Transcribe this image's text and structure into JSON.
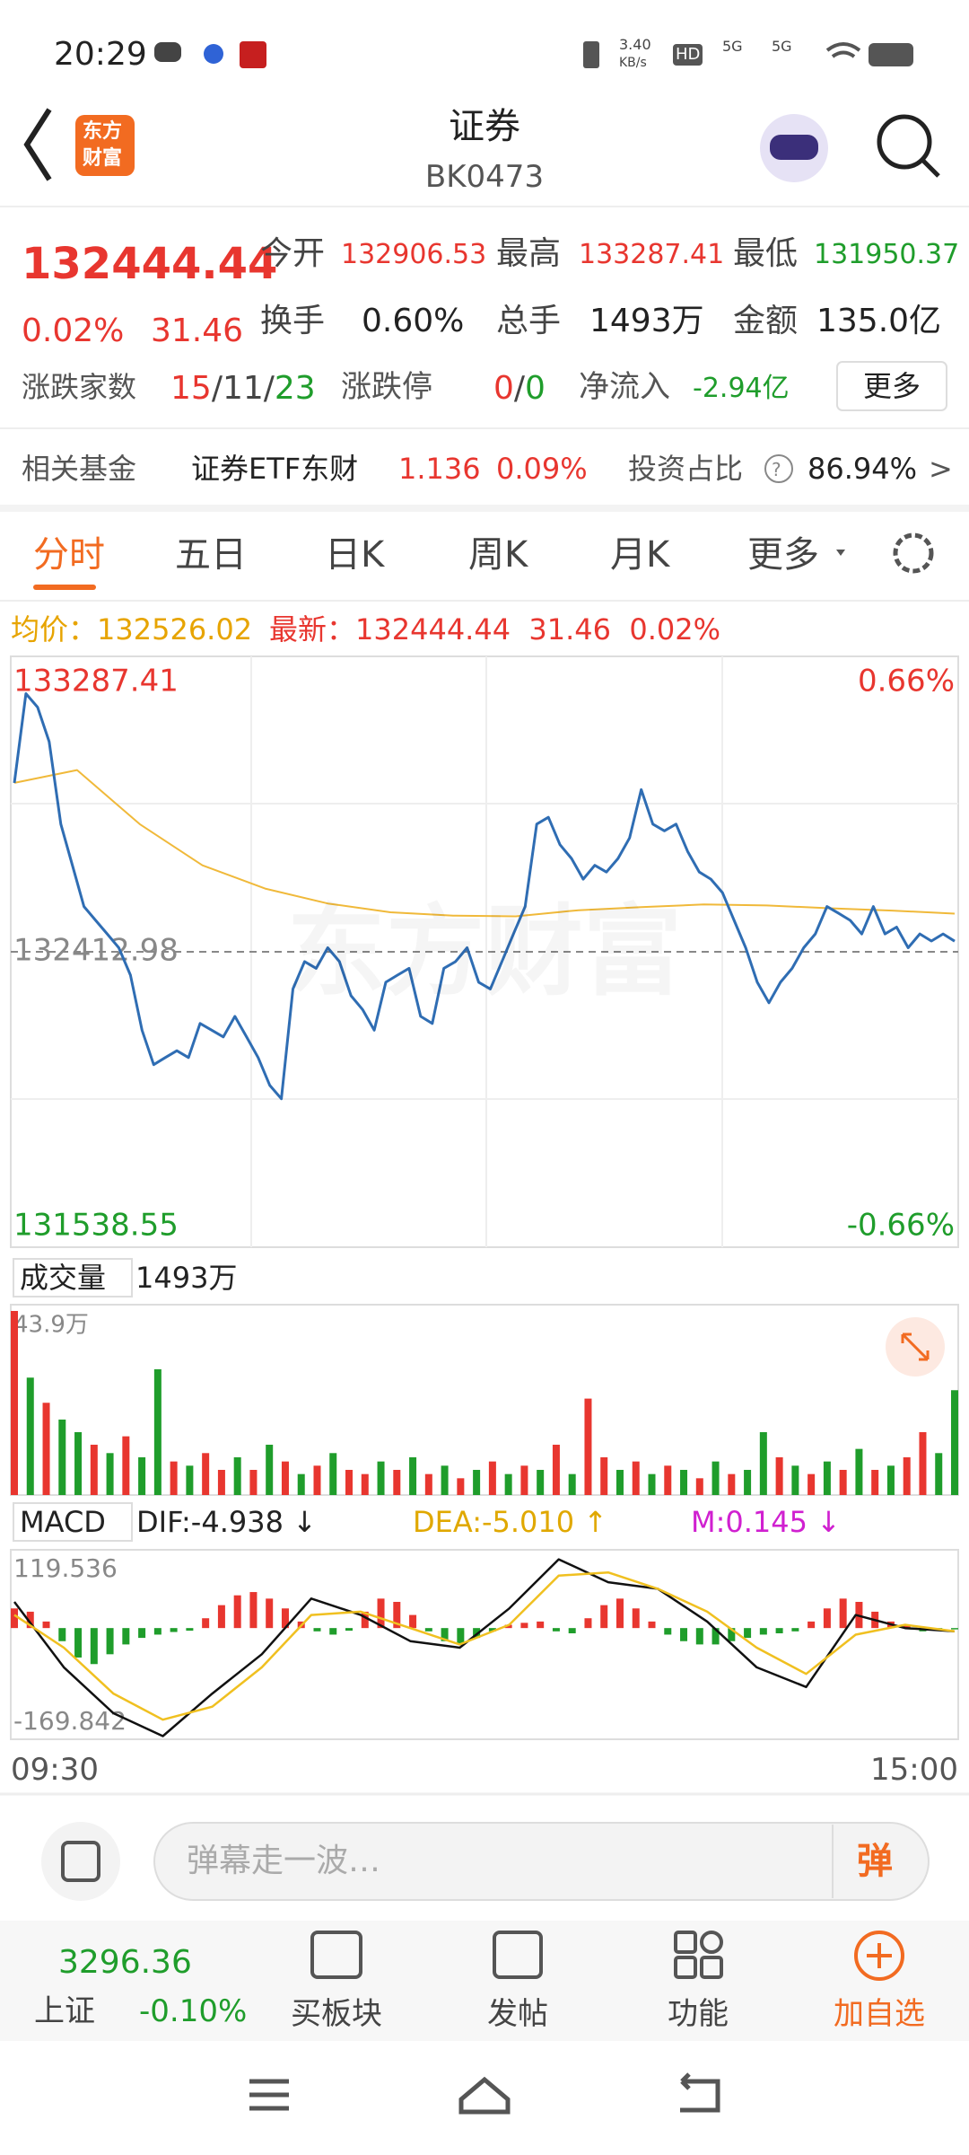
{
  "status_bar": {
    "time": "20:29",
    "speed": "3.40",
    "speed_unit": "KB/s",
    "hd_badge": "HD",
    "signal_labels": [
      "5G",
      "5G"
    ]
  },
  "header": {
    "logo_text": [
      "东方",
      "财富"
    ],
    "title": "证券",
    "code": "BK0473"
  },
  "quote": {
    "price": "132444.44",
    "change_pct": "0.02%",
    "change": "31.46",
    "open_label": "今开",
    "open": "132906.53",
    "high_label": "最高",
    "high": "133287.41",
    "low_label": "最低",
    "low": "131950.37",
    "turnover_label": "换手",
    "turnover": "0.60%",
    "volume_label": "总手",
    "volume": "1493万",
    "amount_label": "金额",
    "amount": "135.0亿",
    "breadth_label": "涨跌家数",
    "up": "15",
    "flat": "11",
    "down": "23",
    "sep": "/",
    "limit_label": "涨跌停",
    "limit_up": "0",
    "limit_down": "0",
    "inflow_label": "净流入",
    "inflow": "-2.94亿",
    "more": "更多"
  },
  "fund_row": {
    "label": "相关基金",
    "name": "证券ETF东财",
    "price": "1.136",
    "pct": "0.09%",
    "ratio_label": "投资占比",
    "help": "?",
    "ratio": "86.94%",
    "arrow": ">"
  },
  "tabs": [
    "分时",
    "五日",
    "日K",
    "周K",
    "月K",
    "更多"
  ],
  "info_bar": {
    "avg_label": "均价：",
    "avg": "132526.02",
    "last_label": "最新：",
    "last": "132444.44",
    "change": "31.46",
    "pct": "0.02%"
  },
  "watermark": "东方财富",
  "intraday": {
    "ylim": [
      131538.55,
      133287.41
    ],
    "yticks": [
      133287.41,
      132412.98,
      131538.55
    ],
    "y2lim": [
      -0.66,
      0.66
    ],
    "y2ticks": [
      {
        "value": 0.66,
        "label": "0.66%"
      },
      {
        "value": -0.66,
        "label": "-0.66%"
      }
    ],
    "series": [
      {
        "name": "最新",
        "color": "#2f6db3",
        "values": [
          132913,
          133177,
          133137,
          133035,
          132791,
          132669,
          132547,
          132506,
          132466,
          132425,
          132344,
          132181,
          132079,
          132100,
          132120,
          132100,
          132201,
          132181,
          132161,
          132222,
          132161,
          132100,
          132018,
          131978,
          132303,
          132384,
          132364,
          132425,
          132384,
          132283,
          132242,
          132181,
          132323,
          132344,
          132364,
          132222,
          132201,
          132364,
          132384,
          132425,
          132323,
          132303,
          132384,
          132466,
          132547,
          132791,
          132811,
          132730,
          132689,
          132628,
          132669,
          132649,
          132689,
          132750,
          132893,
          132791,
          132771,
          132791,
          132710,
          132649,
          132628,
          132588,
          132506,
          132425,
          132323,
          132262,
          132323,
          132364,
          132425,
          132466,
          132547,
          132527,
          132506,
          132466,
          132547,
          132466,
          132486,
          132425,
          132466,
          132445,
          132466,
          132444.44
        ]
      },
      {
        "name": "均价",
        "color": "#f0b93a",
        "values": [
          132913,
          132951,
          132791,
          132669,
          132600,
          132556,
          132530,
          132520,
          132518,
          132536,
          132545,
          132553,
          132550,
          132542,
          132535,
          132526.02
        ]
      }
    ]
  },
  "volume": {
    "label": "成交量",
    "total": "1493万",
    "ylim": [
      0,
      43.9
    ],
    "yticks": [
      {
        "value": 43.9,
        "label": "43.9万"
      }
    ],
    "values": [
      43.9,
      28,
      22,
      18,
      15,
      12,
      10,
      14,
      9,
      30,
      8,
      7,
      10,
      6,
      9,
      6,
      12,
      8,
      5,
      7,
      10,
      6,
      5,
      8,
      6,
      9,
      5,
      7,
      4,
      6,
      8,
      5,
      7,
      6,
      12,
      5,
      23,
      9,
      6,
      8,
      5,
      7,
      6,
      4,
      8,
      5,
      6,
      15,
      9,
      7,
      5,
      8,
      6,
      11,
      6,
      7,
      9,
      15,
      10,
      25
    ],
    "colors": [
      "#e8362f",
      "#1f9d2b",
      "#e8362f",
      "#1f9d2b",
      "#1f9d2b",
      "#e8362f",
      "#1f9d2b",
      "#e8362f",
      "#1f9d2b",
      "#1f9d2b",
      "#e8362f",
      "#1f9d2b",
      "#e8362f",
      "#e8362f",
      "#1f9d2b",
      "#e8362f",
      "#1f9d2b",
      "#e8362f",
      "#1f9d2b",
      "#e8362f",
      "#1f9d2b",
      "#e8362f",
      "#e8362f",
      "#1f9d2b",
      "#e8362f",
      "#1f9d2b",
      "#e8362f",
      "#1f9d2b",
      "#e8362f",
      "#1f9d2b",
      "#e8362f",
      "#1f9d2b",
      "#e8362f",
      "#1f9d2b",
      "#e8362f",
      "#1f9d2b",
      "#e8362f",
      "#e8362f",
      "#1f9d2b",
      "#e8362f",
      "#1f9d2b",
      "#e8362f",
      "#1f9d2b",
      "#e8362f",
      "#1f9d2b",
      "#e8362f",
      "#1f9d2b",
      "#1f9d2b",
      "#e8362f",
      "#1f9d2b",
      "#e8362f",
      "#1f9d2b",
      "#e8362f",
      "#1f9d2b",
      "#e8362f",
      "#1f9d2b",
      "#e8362f",
      "#e8362f",
      "#1f9d2b",
      "#1f9d2b"
    ]
  },
  "macd": {
    "label": "MACD",
    "dif_text": "DIF:-4.938 ↓",
    "dea_text": "DEA:-5.010 ↑",
    "m_text": "M:0.145 ↓",
    "ylim": [
      -169.842,
      119.536
    ],
    "yticks": [
      119.536,
      -169.842
    ],
    "up_color": "#e8362f",
    "down_color": "#1f9d2b",
    "histogram": [
      30,
      25,
      10,
      -20,
      -45,
      -55,
      -40,
      -25,
      -15,
      -10,
      -6,
      -4,
      15,
      35,
      50,
      55,
      45,
      30,
      10,
      -5,
      -10,
      -4,
      25,
      45,
      40,
      20,
      -5,
      -20,
      -25,
      -15,
      -5,
      5,
      8,
      10,
      -5,
      -8,
      15,
      35,
      45,
      30,
      10,
      -10,
      -20,
      -25,
      -25,
      -20,
      -15,
      -10,
      -8,
      -5,
      10,
      30,
      45,
      40,
      25,
      10,
      5,
      -5,
      -3,
      -2
    ],
    "series": [
      {
        "name": "DIF",
        "color": "#111111",
        "values": [
          40,
          -60,
          -130,
          -165,
          -100,
          -40,
          45,
          20,
          -20,
          -30,
          30,
          105,
          70,
          60,
          10,
          -60,
          -90,
          20,
          0,
          -4.938
        ]
      },
      {
        "name": "DEA",
        "color": "#f0c020",
        "values": [
          20,
          -30,
          -100,
          -140,
          -120,
          -60,
          20,
          25,
          0,
          -25,
          5,
          80,
          85,
          60,
          25,
          -30,
          -70,
          -10,
          5,
          -5.01
        ]
      }
    ]
  },
  "time_labels": [
    "09:30",
    "15:00"
  ],
  "input": {
    "placeholder": "弹幕走一波…",
    "button": "弹"
  },
  "bottom_nav": {
    "index_value": "3296.36",
    "index_name": "上证",
    "index_pct": "-0.10%",
    "items": [
      "买板块",
      "发帖",
      "功能",
      "加自选"
    ]
  }
}
